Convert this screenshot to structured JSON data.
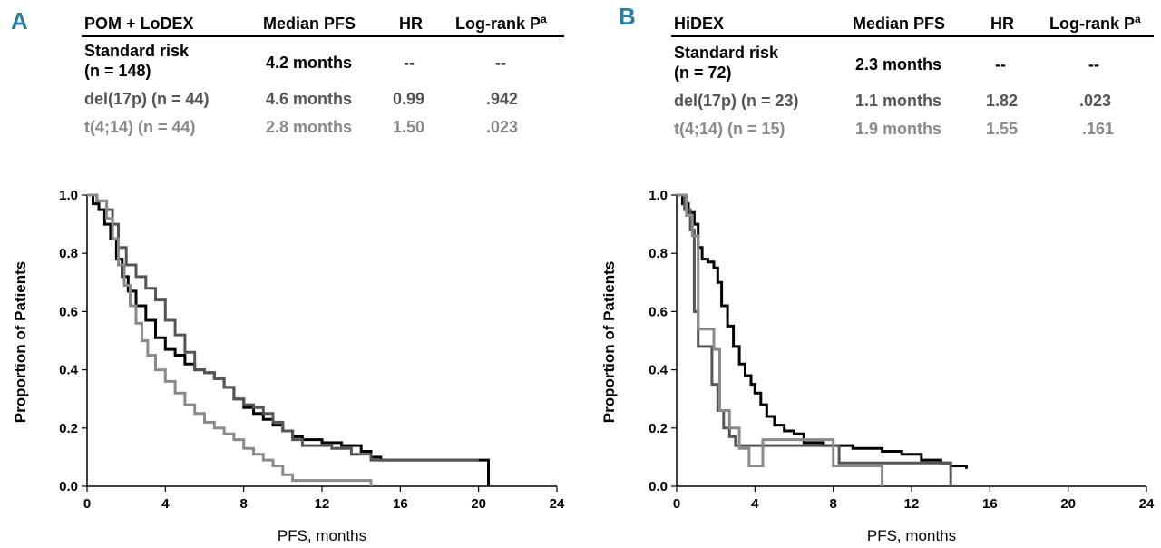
{
  "chart_data": [
    {
      "panel": "A",
      "type": "line",
      "table": {
        "headers": [
          "POM + LoDEX",
          "Median PFS",
          "HR",
          "Log-rank P",
          "a"
        ],
        "rows": [
          {
            "name": [
              "Standard risk",
              "(n = 148)"
            ],
            "median": "4.2 months",
            "hr": "--",
            "p": "--",
            "color": "#000000"
          },
          {
            "name": [
              "del(17p) (n = 44)"
            ],
            "median": "4.6 months",
            "hr": "0.99",
            "p": ".942",
            "color": "#555555"
          },
          {
            "name": [
              "t(4;14) (n = 44)"
            ],
            "median": "2.8 months",
            "hr": "1.50",
            "p": ".023",
            "color": "#8a8a8a"
          }
        ]
      },
      "xlabel": "PFS, months",
      "ylabel": "Proportion of Patients",
      "xlim": [
        0,
        24
      ],
      "ylim": [
        0,
        1
      ],
      "xticks": [
        "0",
        "4",
        "8",
        "12",
        "16",
        "20",
        "24"
      ],
      "yticks": [
        "0.0",
        "0.2",
        "0.4",
        "0.6",
        "0.8",
        "1.0"
      ],
      "series": [
        {
          "name": "Standard risk",
          "color": "#000000",
          "points": [
            [
              0,
              1.0
            ],
            [
              0.3,
              0.97
            ],
            [
              0.6,
              0.95
            ],
            [
              0.9,
              0.9
            ],
            [
              1.2,
              0.85
            ],
            [
              1.5,
              0.78
            ],
            [
              1.8,
              0.72
            ],
            [
              2.1,
              0.67
            ],
            [
              2.5,
              0.62
            ],
            [
              3.0,
              0.57
            ],
            [
              3.5,
              0.51
            ],
            [
              4.0,
              0.47
            ],
            [
              4.5,
              0.45
            ],
            [
              5.0,
              0.42
            ],
            [
              5.5,
              0.4
            ],
            [
              6.0,
              0.39
            ],
            [
              6.5,
              0.37
            ],
            [
              7.0,
              0.34
            ],
            [
              7.5,
              0.3
            ],
            [
              8.0,
              0.27
            ],
            [
              8.5,
              0.25
            ],
            [
              9.0,
              0.23
            ],
            [
              9.5,
              0.21
            ],
            [
              10.0,
              0.19
            ],
            [
              10.5,
              0.17
            ],
            [
              11.0,
              0.16
            ],
            [
              12.0,
              0.15
            ],
            [
              13.0,
              0.14
            ],
            [
              14.0,
              0.12
            ],
            [
              14.5,
              0.1
            ],
            [
              15.0,
              0.09
            ],
            [
              20.5,
              0.09
            ],
            [
              20.5,
              0.0
            ]
          ]
        },
        {
          "name": "del(17p)",
          "color": "#555555",
          "points": [
            [
              0,
              1.0
            ],
            [
              0.5,
              0.98
            ],
            [
              1.0,
              0.95
            ],
            [
              1.3,
              0.9
            ],
            [
              1.6,
              0.82
            ],
            [
              2.0,
              0.76
            ],
            [
              2.5,
              0.72
            ],
            [
              3.0,
              0.68
            ],
            [
              3.5,
              0.64
            ],
            [
              4.0,
              0.57
            ],
            [
              4.5,
              0.52
            ],
            [
              5.0,
              0.46
            ],
            [
              5.5,
              0.4
            ],
            [
              6.0,
              0.39
            ],
            [
              6.5,
              0.37
            ],
            [
              7.0,
              0.34
            ],
            [
              7.5,
              0.3
            ],
            [
              8.0,
              0.28
            ],
            [
              8.5,
              0.27
            ],
            [
              9.0,
              0.25
            ],
            [
              9.5,
              0.22
            ],
            [
              10.0,
              0.19
            ],
            [
              10.5,
              0.16
            ],
            [
              11.0,
              0.14
            ],
            [
              12.5,
              0.13
            ],
            [
              13.5,
              0.11
            ],
            [
              14.5,
              0.09
            ],
            [
              20.0,
              0.09
            ]
          ]
        },
        {
          "name": "t(4;14)",
          "color": "#8a8a8a",
          "points": [
            [
              0,
              1.0
            ],
            [
              0.5,
              0.98
            ],
            [
              1.0,
              0.92
            ],
            [
              1.3,
              0.85
            ],
            [
              1.6,
              0.76
            ],
            [
              1.9,
              0.69
            ],
            [
              2.2,
              0.62
            ],
            [
              2.5,
              0.56
            ],
            [
              2.8,
              0.5
            ],
            [
              3.1,
              0.45
            ],
            [
              3.5,
              0.4
            ],
            [
              4.0,
              0.36
            ],
            [
              4.5,
              0.32
            ],
            [
              5.0,
              0.28
            ],
            [
              5.5,
              0.25
            ],
            [
              6.0,
              0.22
            ],
            [
              6.5,
              0.2
            ],
            [
              7.0,
              0.18
            ],
            [
              7.5,
              0.16
            ],
            [
              8.0,
              0.13
            ],
            [
              8.5,
              0.11
            ],
            [
              9.0,
              0.09
            ],
            [
              9.5,
              0.07
            ],
            [
              10.0,
              0.04
            ],
            [
              10.5,
              0.02
            ],
            [
              14.5,
              0.02
            ],
            [
              14.5,
              0.0
            ]
          ]
        }
      ]
    },
    {
      "panel": "B",
      "type": "line",
      "table": {
        "headers": [
          "HiDEX",
          "Median PFS",
          "HR",
          "Log-rank P",
          "a"
        ],
        "rows": [
          {
            "name": [
              "Standard risk",
              "(n = 72)"
            ],
            "median": "2.3 months",
            "hr": "--",
            "p": "--",
            "color": "#000000"
          },
          {
            "name": [
              "del(17p) (n = 23)"
            ],
            "median": "1.1 months",
            "hr": "1.82",
            "p": ".023",
            "color": "#555555"
          },
          {
            "name": [
              "t(4;14) (n = 15)"
            ],
            "median": "1.9 months",
            "hr": "1.55",
            "p": ".161",
            "color": "#8a8a8a"
          }
        ]
      },
      "xlabel": "PFS, months",
      "ylabel": "Proportion of Patients",
      "xlim": [
        0,
        24
      ],
      "ylim": [
        0,
        1
      ],
      "xticks": [
        "0",
        "4",
        "8",
        "12",
        "16",
        "20",
        "24"
      ],
      "yticks": [
        "0.0",
        "0.2",
        "0.4",
        "0.6",
        "0.8",
        "1.0"
      ],
      "series": [
        {
          "name": "Standard risk",
          "color": "#000000",
          "points": [
            [
              0,
              1.0
            ],
            [
              0.3,
              0.97
            ],
            [
              0.6,
              0.94
            ],
            [
              0.9,
              0.9
            ],
            [
              1.1,
              0.82
            ],
            [
              1.3,
              0.78
            ],
            [
              1.6,
              0.77
            ],
            [
              1.9,
              0.75
            ],
            [
              2.1,
              0.7
            ],
            [
              2.3,
              0.62
            ],
            [
              2.6,
              0.55
            ],
            [
              2.9,
              0.48
            ],
            [
              3.2,
              0.42
            ],
            [
              3.5,
              0.38
            ],
            [
              3.8,
              0.35
            ],
            [
              4.0,
              0.32
            ],
            [
              4.3,
              0.28
            ],
            [
              4.6,
              0.24
            ],
            [
              5.0,
              0.21
            ],
            [
              5.5,
              0.19
            ],
            [
              6.0,
              0.18
            ],
            [
              6.5,
              0.15
            ],
            [
              7.5,
              0.14
            ],
            [
              9.0,
              0.13
            ],
            [
              10.5,
              0.12
            ],
            [
              11.5,
              0.11
            ],
            [
              12.5,
              0.09
            ],
            [
              13.5,
              0.08
            ],
            [
              14.0,
              0.07
            ],
            [
              14.8,
              0.06
            ]
          ]
        },
        {
          "name": "del(17p)",
          "color": "#555555",
          "points": [
            [
              0,
              1.0
            ],
            [
              0.4,
              0.95
            ],
            [
              0.7,
              0.88
            ],
            [
              0.9,
              0.6
            ],
            [
              1.1,
              0.48
            ],
            [
              1.5,
              0.48
            ],
            [
              1.8,
              0.35
            ],
            [
              2.1,
              0.26
            ],
            [
              2.4,
              0.2
            ],
            [
              2.7,
              0.17
            ],
            [
              3.0,
              0.14
            ],
            [
              8.0,
              0.14
            ],
            [
              8.3,
              0.08
            ],
            [
              12.0,
              0.08
            ],
            [
              14.0,
              0.08
            ],
            [
              14.0,
              0.0
            ]
          ]
        },
        {
          "name": "t(4;14)",
          "color": "#8a8a8a",
          "points": [
            [
              0,
              1.0
            ],
            [
              0.5,
              0.93
            ],
            [
              0.8,
              0.86
            ],
            [
              1.1,
              0.54
            ],
            [
              1.6,
              0.54
            ],
            [
              1.9,
              0.47
            ],
            [
              2.2,
              0.26
            ],
            [
              2.7,
              0.2
            ],
            [
              3.2,
              0.13
            ],
            [
              3.7,
              0.07
            ],
            [
              4.2,
              0.07
            ],
            [
              4.4,
              0.16
            ],
            [
              7.7,
              0.16
            ],
            [
              8.0,
              0.07
            ],
            [
              10.5,
              0.07
            ],
            [
              10.5,
              0.0
            ]
          ]
        }
      ]
    }
  ]
}
